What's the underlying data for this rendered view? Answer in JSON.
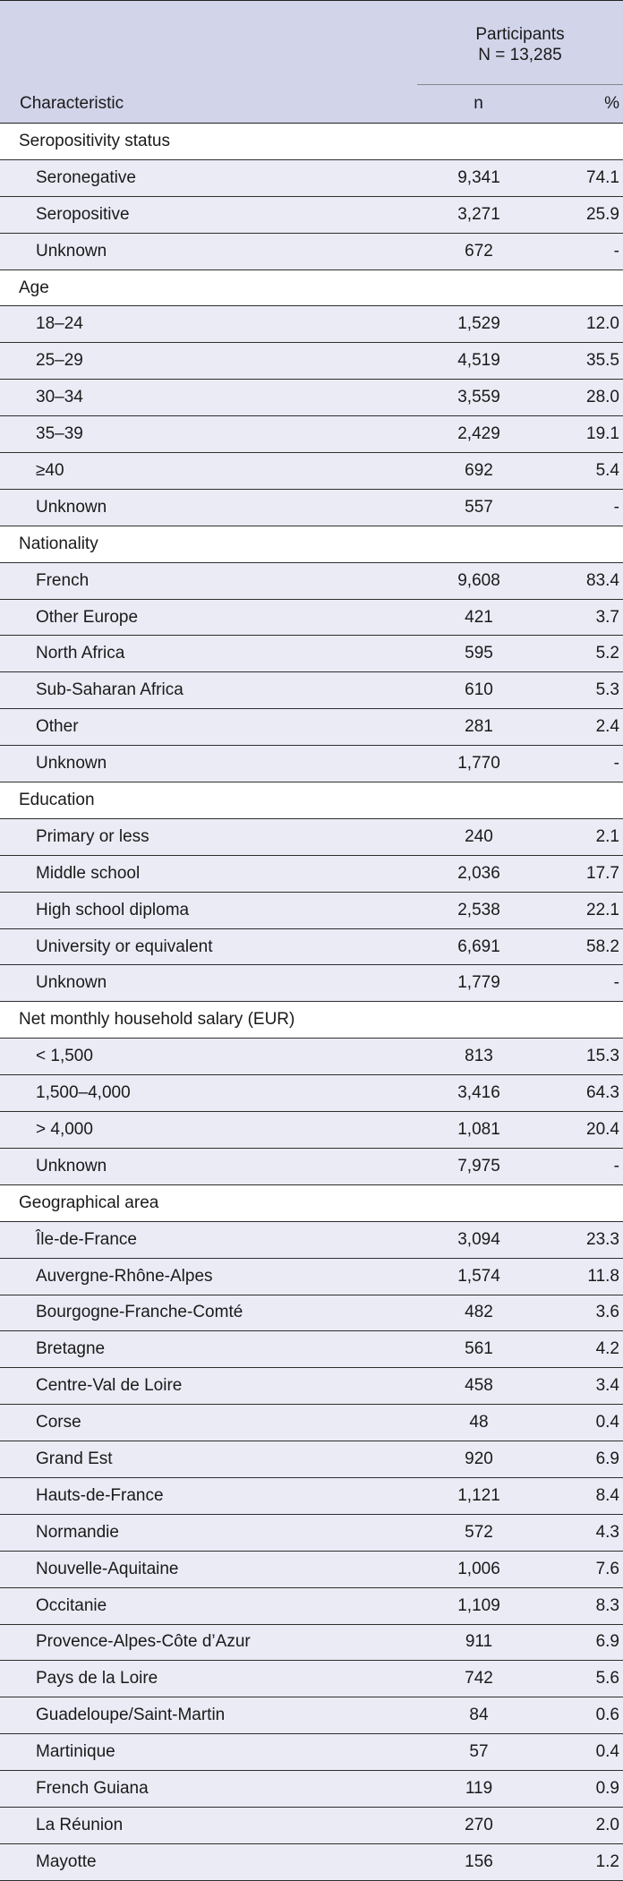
{
  "header": {
    "participants_line1": "Participants",
    "participants_line2": "N = 13,285",
    "characteristic": "Characteristic",
    "n": "n",
    "pct": "%"
  },
  "sections": [
    {
      "title": "Seropositivity status",
      "rows": [
        {
          "label": "Seronegative",
          "n": "9,341",
          "pct": "74.1"
        },
        {
          "label": "Seropositive",
          "n": "3,271",
          "pct": "25.9"
        },
        {
          "label": "Unknown",
          "n": "672",
          "pct": "-"
        }
      ]
    },
    {
      "title": "Age",
      "rows": [
        {
          "label": "18–24",
          "n": "1,529",
          "pct": "12.0"
        },
        {
          "label": "25–29",
          "n": "4,519",
          "pct": "35.5"
        },
        {
          "label": "30–34",
          "n": "3,559",
          "pct": "28.0"
        },
        {
          "label": "35–39",
          "n": "2,429",
          "pct": "19.1"
        },
        {
          "label": "≥40",
          "n": "692",
          "pct": "5.4"
        },
        {
          "label": "Unknown",
          "n": "557",
          "pct": "-"
        }
      ]
    },
    {
      "title": "Nationality",
      "rows": [
        {
          "label": "French",
          "n": "9,608",
          "pct": "83.4"
        },
        {
          "label": "Other Europe",
          "n": "421",
          "pct": "3.7"
        },
        {
          "label": "North Africa",
          "n": "595",
          "pct": "5.2"
        },
        {
          "label": "Sub-Saharan Africa",
          "n": "610",
          "pct": "5.3"
        },
        {
          "label": "Other",
          "n": "281",
          "pct": "2.4"
        },
        {
          "label": "Unknown",
          "n": "1,770",
          "pct": "-"
        }
      ]
    },
    {
      "title": "Education",
      "rows": [
        {
          "label": "Primary or less",
          "n": "240",
          "pct": "2.1"
        },
        {
          "label": "Middle school",
          "n": "2,036",
          "pct": "17.7"
        },
        {
          "label": "High school diploma",
          "n": "2,538",
          "pct": "22.1"
        },
        {
          "label": "University or equivalent",
          "n": "6,691",
          "pct": "58.2"
        },
        {
          "label": "Unknown",
          "n": "1,779",
          "pct": "-"
        }
      ]
    },
    {
      "title": "Net monthly household salary (EUR)",
      "rows": [
        {
          "label": "< 1,500",
          "n": "813",
          "pct": "15.3"
        },
        {
          "label": "1,500–4,000",
          "n": "3,416",
          "pct": "64.3"
        },
        {
          "label": "> 4,000",
          "n": "1,081",
          "pct": "20.4"
        },
        {
          "label": "Unknown",
          "n": "7,975",
          "pct": "-"
        }
      ]
    },
    {
      "title": "Geographical area",
      "rows": [
        {
          "label": "Île-de-France",
          "n": "3,094",
          "pct": "23.3"
        },
        {
          "label": "Auvergne-Rhône-Alpes",
          "n": "1,574",
          "pct": "11.8"
        },
        {
          "label": "Bourgogne-Franche-Comté",
          "n": "482",
          "pct": "3.6"
        },
        {
          "label": "Bretagne",
          "n": "561",
          "pct": "4.2"
        },
        {
          "label": "Centre-Val de Loire",
          "n": "458",
          "pct": "3.4"
        },
        {
          "label": "Corse",
          "n": "48",
          "pct": "0.4"
        },
        {
          "label": "Grand Est",
          "n": "920",
          "pct": "6.9"
        },
        {
          "label": "Hauts-de-France",
          "n": "1,121",
          "pct": "8.4"
        },
        {
          "label": "Normandie",
          "n": "572",
          "pct": "4.3"
        },
        {
          "label": "Nouvelle-Aquitaine",
          "n": "1,006",
          "pct": "7.6"
        },
        {
          "label": "Occitanie",
          "n": "1,109",
          "pct": "8.3"
        },
        {
          "label": "Provence-Alpes-Côte d’Azur",
          "n": "911",
          "pct": "6.9"
        },
        {
          "label": "Pays de la Loire",
          "n": "742",
          "pct": "5.6"
        },
        {
          "label": "Guadeloupe/Saint-Martin",
          "n": "84",
          "pct": "0.6"
        },
        {
          "label": "Martinique",
          "n": "57",
          "pct": "0.4"
        },
        {
          "label": "French Guiana",
          "n": "119",
          "pct": "0.9"
        },
        {
          "label": "La Réunion",
          "n": "270",
          "pct": "2.0"
        },
        {
          "label": "Mayotte",
          "n": "156",
          "pct": "1.2"
        }
      ]
    }
  ]
}
